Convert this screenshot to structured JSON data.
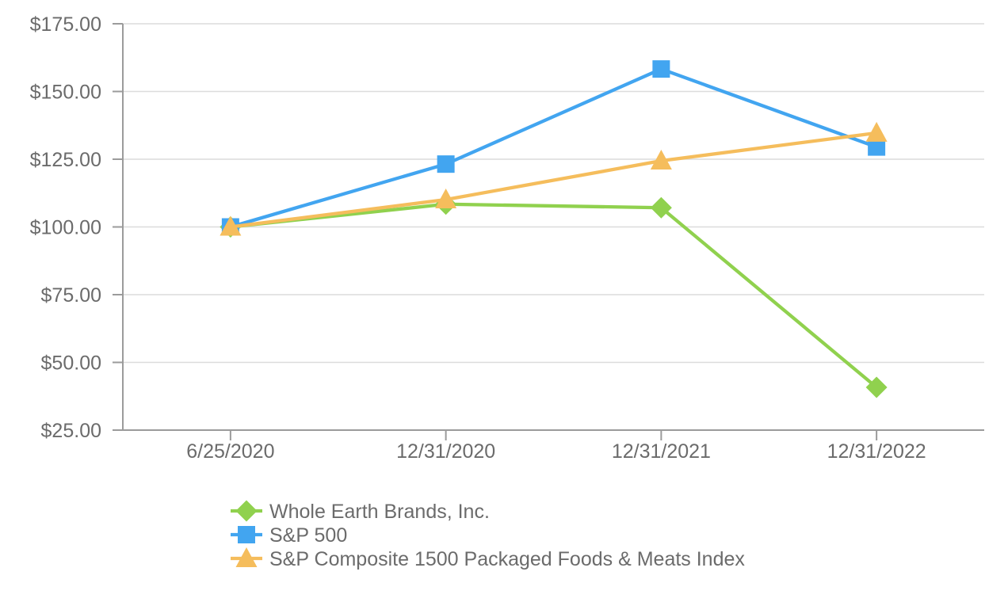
{
  "page": {
    "background_color": "#FFFFFF"
  },
  "chart_data": {
    "type": "line",
    "title": "",
    "xlabel": "",
    "ylabel": "",
    "x": [
      "6/25/2020",
      "12/31/2020",
      "12/31/2021",
      "12/31/2022"
    ],
    "series": [
      {
        "name": "Whole Earth Brands, Inc.",
        "marker": "diamond",
        "color": "#90D14E",
        "values": [
          100.0,
          108.4,
          107.1,
          40.8
        ]
      },
      {
        "name": "S&P 500",
        "marker": "square",
        "color": "#42A5F0",
        "values": [
          100.0,
          123.2,
          158.3,
          129.5
        ]
      },
      {
        "name": "S&P Composite 1500 Packaged Foods & Meats Index",
        "marker": "triangle",
        "color": "#F5BD5C",
        "values": [
          100.0,
          110.1,
          124.4,
          134.7
        ]
      }
    ],
    "ylim": [
      25,
      175
    ],
    "ytick_step": 25,
    "ytick_labels": [
      "$25.00",
      "$50.00",
      "$75.00",
      "$100.00",
      "$125.00",
      "$150.00",
      "$175.00"
    ],
    "grid": true,
    "legend_position": "bottom-left",
    "grid_color": "#DCDCDC",
    "axis_color": "#9B9B9B",
    "text_color": "#6B6B6B"
  }
}
